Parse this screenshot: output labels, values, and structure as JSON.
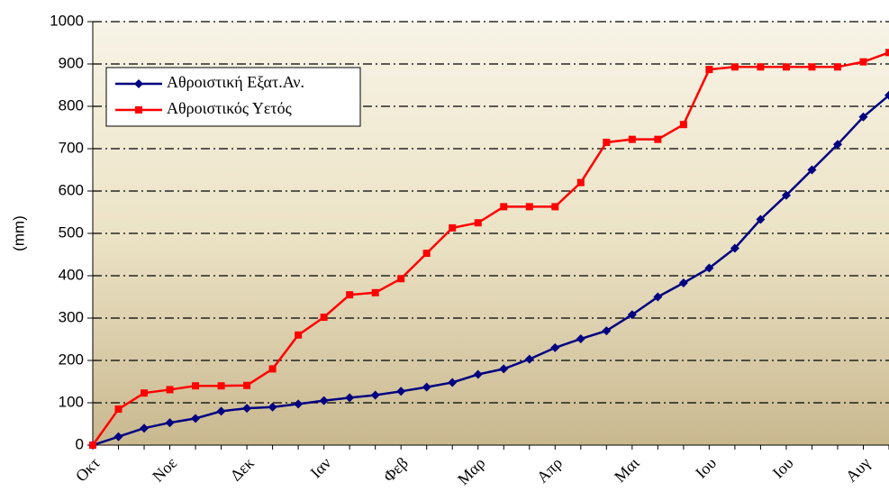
{
  "chart_data": {
    "type": "line",
    "y_label": "(mm)",
    "categories": [
      "Οκτ",
      null,
      null,
      "Νοε",
      null,
      null,
      "Δεκ",
      null,
      null,
      "Ιαν",
      null,
      null,
      "Φεβ",
      null,
      null,
      "Μαρ",
      null,
      null,
      "Απρ",
      null,
      null,
      "Μαι",
      null,
      null,
      "Ιου",
      null,
      null,
      "Ιου",
      null,
      null,
      "Αυγ",
      null
    ],
    "series": [
      {
        "name": "Αθροιστική Εξατ.Αν.",
        "color": "#000080",
        "marker": "diamond",
        "values": [
          0,
          20,
          40,
          53,
          63,
          80,
          87,
          90,
          97,
          105,
          112,
          118,
          127,
          137,
          148,
          167,
          180,
          203,
          230,
          251,
          270,
          308,
          350,
          383,
          418,
          465,
          533,
          590,
          650,
          710,
          775,
          826
        ]
      },
      {
        "name": "Αθροιστικός Υετός",
        "color": "#ff0000",
        "marker": "square",
        "values": [
          0,
          85,
          123,
          131,
          140,
          140,
          141,
          180,
          260,
          302,
          355,
          360,
          393,
          453,
          513,
          525,
          563,
          563,
          563,
          620,
          715,
          722,
          722,
          757,
          887,
          893,
          893,
          893,
          893,
          893,
          905,
          927
        ]
      }
    ],
    "ylim": [
      0,
      1000
    ],
    "yticks": [
      0,
      100,
      200,
      300,
      400,
      500,
      600,
      700,
      800,
      900,
      1000
    ],
    "grid": true,
    "legend": "upper left"
  }
}
